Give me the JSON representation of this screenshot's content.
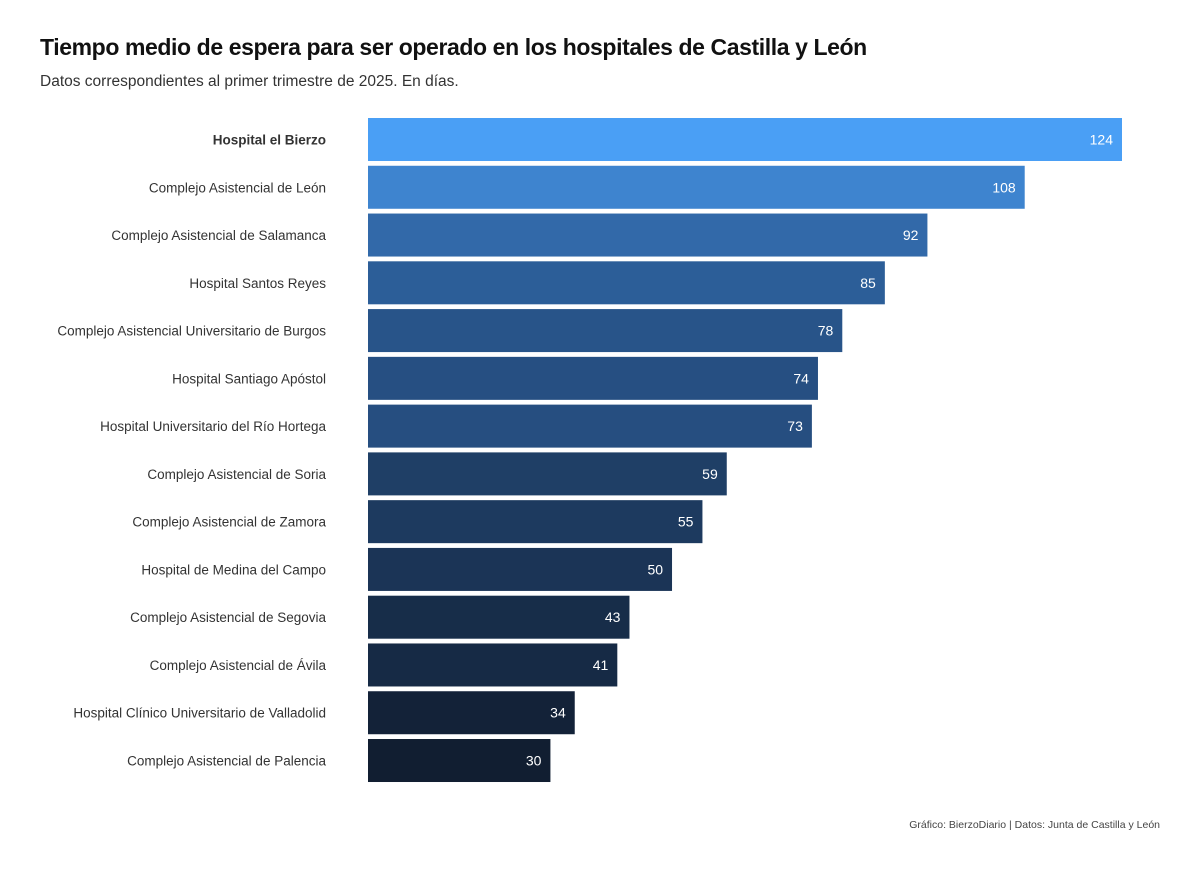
{
  "header": {
    "title": "Tiempo medio de espera para ser operado en los hospitales de Castilla y León",
    "subtitle": "Datos correspondientes al primer trimestre de 2025. En días."
  },
  "footer": {
    "caption": "Gráfico: BierzoDiario | Datos: Junta de Castilla y León"
  },
  "chart_data": {
    "type": "bar",
    "orientation": "horizontal",
    "highlighted_category": "Hospital el Bierzo",
    "categories": [
      "Hospital el Bierzo",
      "Complejo Asistencial de León",
      "Complejo Asistencial de Salamanca",
      "Hospital Santos Reyes",
      "Complejo Asistencial Universitario de Burgos",
      "Hospital Santiago Apóstol",
      "Hospital Universitario del Río Hortega",
      "Complejo Asistencial de Soria",
      "Complejo Asistencial de Zamora",
      "Hospital de Medina del Campo",
      "Complejo Asistencial de Segovia",
      "Complejo Asistencial de Ávila",
      "Hospital Clínico Universitario de Valladolid",
      "Complejo Asistencial de Palencia"
    ],
    "values": [
      124,
      108,
      92,
      85,
      78,
      74,
      73,
      59,
      55,
      50,
      43,
      41,
      34,
      30
    ],
    "xlim": [
      0,
      124
    ],
    "grid": false,
    "data_labels": true,
    "colors": {
      "low": "#111e31",
      "mid": "#2a5890",
      "high": "#4a9ff5",
      "label_text": "#ffffff",
      "category_text": "#333333"
    }
  }
}
